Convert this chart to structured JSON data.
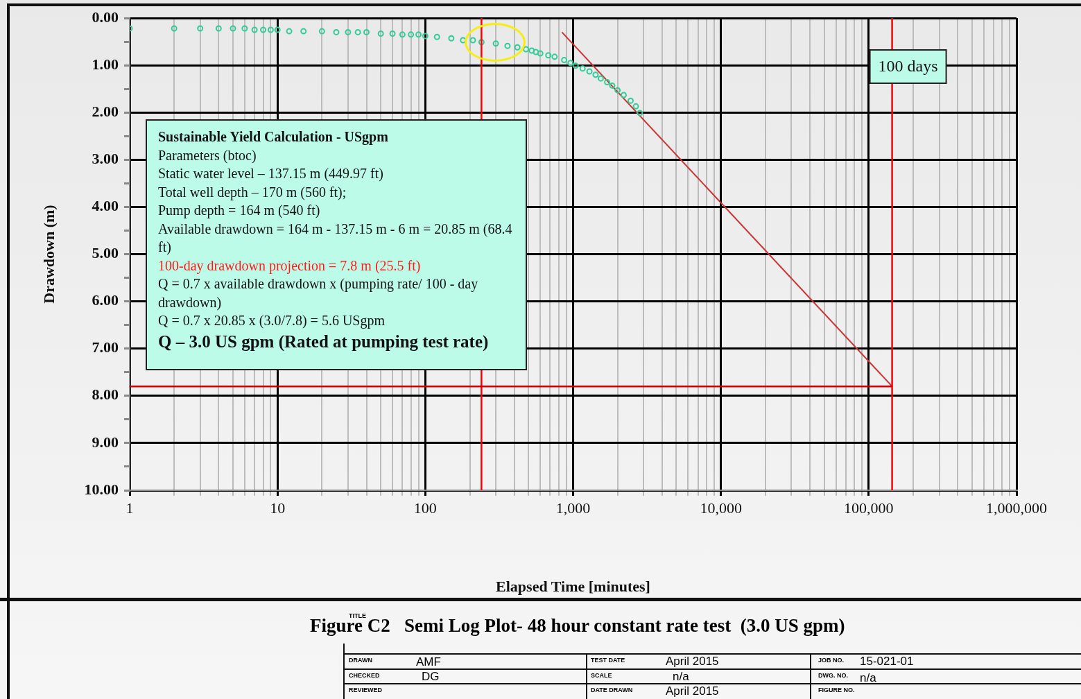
{
  "chart_data": {
    "type": "scatter",
    "title": "Figure C2   Semi Log Plot- 48 hour constant rate test  (3.0 US gpm)",
    "xlabel": "Elapsed Time [minutes]",
    "ylabel": "Drawdown (m)",
    "log": "x",
    "grid": true,
    "legend": false,
    "xlim": [
      1,
      1000000
    ],
    "xticks": [
      {
        "value": 1,
        "label": "1"
      },
      {
        "value": 2,
        "label": null
      },
      {
        "value": 3,
        "label": null
      },
      {
        "value": 4,
        "label": null
      },
      {
        "value": 5,
        "label": null
      },
      {
        "value": 6,
        "label": null
      },
      {
        "value": 7,
        "label": null
      },
      {
        "value": 8,
        "label": null
      },
      {
        "value": 9,
        "label": null
      },
      {
        "value": 10,
        "label": "10"
      },
      {
        "value": 20,
        "label": null
      },
      {
        "value": 30,
        "label": null
      },
      {
        "value": 40,
        "label": null
      },
      {
        "value": 50,
        "label": null
      },
      {
        "value": 60,
        "label": null
      },
      {
        "value": 70,
        "label": null
      },
      {
        "value": 80,
        "label": null
      },
      {
        "value": 90,
        "label": null
      },
      {
        "value": 100,
        "label": "100"
      },
      {
        "value": 200,
        "label": null
      },
      {
        "value": 300,
        "label": null
      },
      {
        "value": 400,
        "label": null
      },
      {
        "value": 500,
        "label": null
      },
      {
        "value": 600,
        "label": null
      },
      {
        "value": 700,
        "label": null
      },
      {
        "value": 800,
        "label": null
      },
      {
        "value": 900,
        "label": null
      },
      {
        "value": 1000,
        "label": "1,000"
      },
      {
        "value": 2000,
        "label": null
      },
      {
        "value": 3000,
        "label": null
      },
      {
        "value": 4000,
        "label": null
      },
      {
        "value": 5000,
        "label": null
      },
      {
        "value": 6000,
        "label": null
      },
      {
        "value": 7000,
        "label": null
      },
      {
        "value": 8000,
        "label": null
      },
      {
        "value": 9000,
        "label": null
      },
      {
        "value": 10000,
        "label": "10,000"
      },
      {
        "value": 20000,
        "label": null
      },
      {
        "value": 30000,
        "label": null
      },
      {
        "value": 40000,
        "label": null
      },
      {
        "value": 50000,
        "label": null
      },
      {
        "value": 60000,
        "label": null
      },
      {
        "value": 70000,
        "label": null
      },
      {
        "value": 80000,
        "label": null
      },
      {
        "value": 90000,
        "label": null
      },
      {
        "value": 100000,
        "label": "100,000"
      },
      {
        "value": 200000,
        "label": null
      },
      {
        "value": 300000,
        "label": null
      },
      {
        "value": 400000,
        "label": null
      },
      {
        "value": 500000,
        "label": null
      },
      {
        "value": 600000,
        "label": null
      },
      {
        "value": 700000,
        "label": null
      },
      {
        "value": 800000,
        "label": null
      },
      {
        "value": 900000,
        "label": null
      },
      {
        "value": 1000000,
        "label": "1,000,000"
      }
    ],
    "ylim": [
      10,
      0
    ],
    "yticks": [
      {
        "value": 0,
        "label": "0.00"
      },
      {
        "value": 0.5,
        "label": null
      },
      {
        "value": 1,
        "label": "1.00"
      },
      {
        "value": 1.5,
        "label": null
      },
      {
        "value": 2,
        "label": "2.00"
      },
      {
        "value": 2.5,
        "label": null
      },
      {
        "value": 3,
        "label": "3.00"
      },
      {
        "value": 3.5,
        "label": null
      },
      {
        "value": 4,
        "label": "4.00"
      },
      {
        "value": 4.5,
        "label": null
      },
      {
        "value": 5,
        "label": "5.00"
      },
      {
        "value": 5.5,
        "label": null
      },
      {
        "value": 6,
        "label": "6.00"
      },
      {
        "value": 6.5,
        "label": null
      },
      {
        "value": 7,
        "label": "7.00"
      },
      {
        "value": 7.5,
        "label": null
      },
      {
        "value": 8,
        "label": "8.00"
      },
      {
        "value": 8.5,
        "label": null
      },
      {
        "value": 9,
        "label": "9.00"
      },
      {
        "value": 9.5,
        "label": null
      },
      {
        "value": 10,
        "label": "10.00"
      }
    ],
    "series": [
      {
        "type": "scatter",
        "marker": "circle",
        "color": "#33cc99",
        "x": [
          1,
          2,
          3,
          4,
          5,
          6,
          7,
          8,
          9,
          10,
          12,
          15,
          20,
          25,
          30,
          35,
          40,
          50,
          60,
          70,
          80,
          90,
          100,
          120,
          150,
          180,
          210,
          240,
          300,
          360,
          420,
          480,
          525,
          560,
          600,
          680,
          750,
          870,
          960,
          1040,
          1160,
          1290,
          1420,
          1540,
          1700,
          1840,
          2000,
          2200,
          2450,
          2660,
          2830
        ],
        "values": [
          0.22,
          0.22,
          0.22,
          0.22,
          0.22,
          0.22,
          0.25,
          0.25,
          0.25,
          0.25,
          0.28,
          0.28,
          0.28,
          0.3,
          0.3,
          0.3,
          0.3,
          0.33,
          0.33,
          0.35,
          0.35,
          0.35,
          0.38,
          0.4,
          0.43,
          0.47,
          0.47,
          0.51,
          0.54,
          0.59,
          0.62,
          0.66,
          0.69,
          0.72,
          0.75,
          0.79,
          0.82,
          0.89,
          0.95,
          1.01,
          1.07,
          1.13,
          1.2,
          1.28,
          1.36,
          1.43,
          1.53,
          1.63,
          1.75,
          1.87,
          2.01
        ]
      },
      {
        "type": "line",
        "color": "#cc3333",
        "x": [
          840,
          144000
        ],
        "values": [
          0.3,
          7.8
        ]
      }
    ],
    "ref_lines": [
      {
        "axis": "x",
        "value": 240,
        "color": "#ff0000"
      },
      {
        "axis": "x",
        "value": 144000,
        "label": "100 days",
        "color": "#ff0000"
      },
      {
        "axis": "y",
        "value": 7.8,
        "color": "#cc0000"
      }
    ],
    "annotations": [
      "Sustainable Yield Calculation -  USgpm",
      "Parameters (btoc)",
      "Static water level –  137.15 m (449.97 ft)",
      "Total well depth – 170 m (560 ft);",
      "Pump depth =  164 m (540 ft)",
      "Available  drawdown =  164 m - 137.15 m - 6 m = 20.85 m (68.4 ft)",
      "100-day drawdown  projection =  7.8 m (25.5 ft)",
      "Q = 0.7 x available  drawdown x (pumping rate/ 100 - day drawdown)",
      "Q = 0.7 x 20.85 x (3.0/7.8) = 5.6 USgpm",
      "Q – 3.0 US gpm (Rated at pumping test rate)",
      "TITLE",
      "DRAWN",
      "AMF",
      "TEST DATE",
      "April 2015",
      "JOB NO.",
      "15-021-01",
      "CHECKED",
      "DG",
      "SCALE",
      "n/a",
      "DWG. NO.",
      "n/a",
      "REVIEWED",
      "DATE DRAWN",
      "April 2015",
      "FIGURE NO."
    ]
  }
}
